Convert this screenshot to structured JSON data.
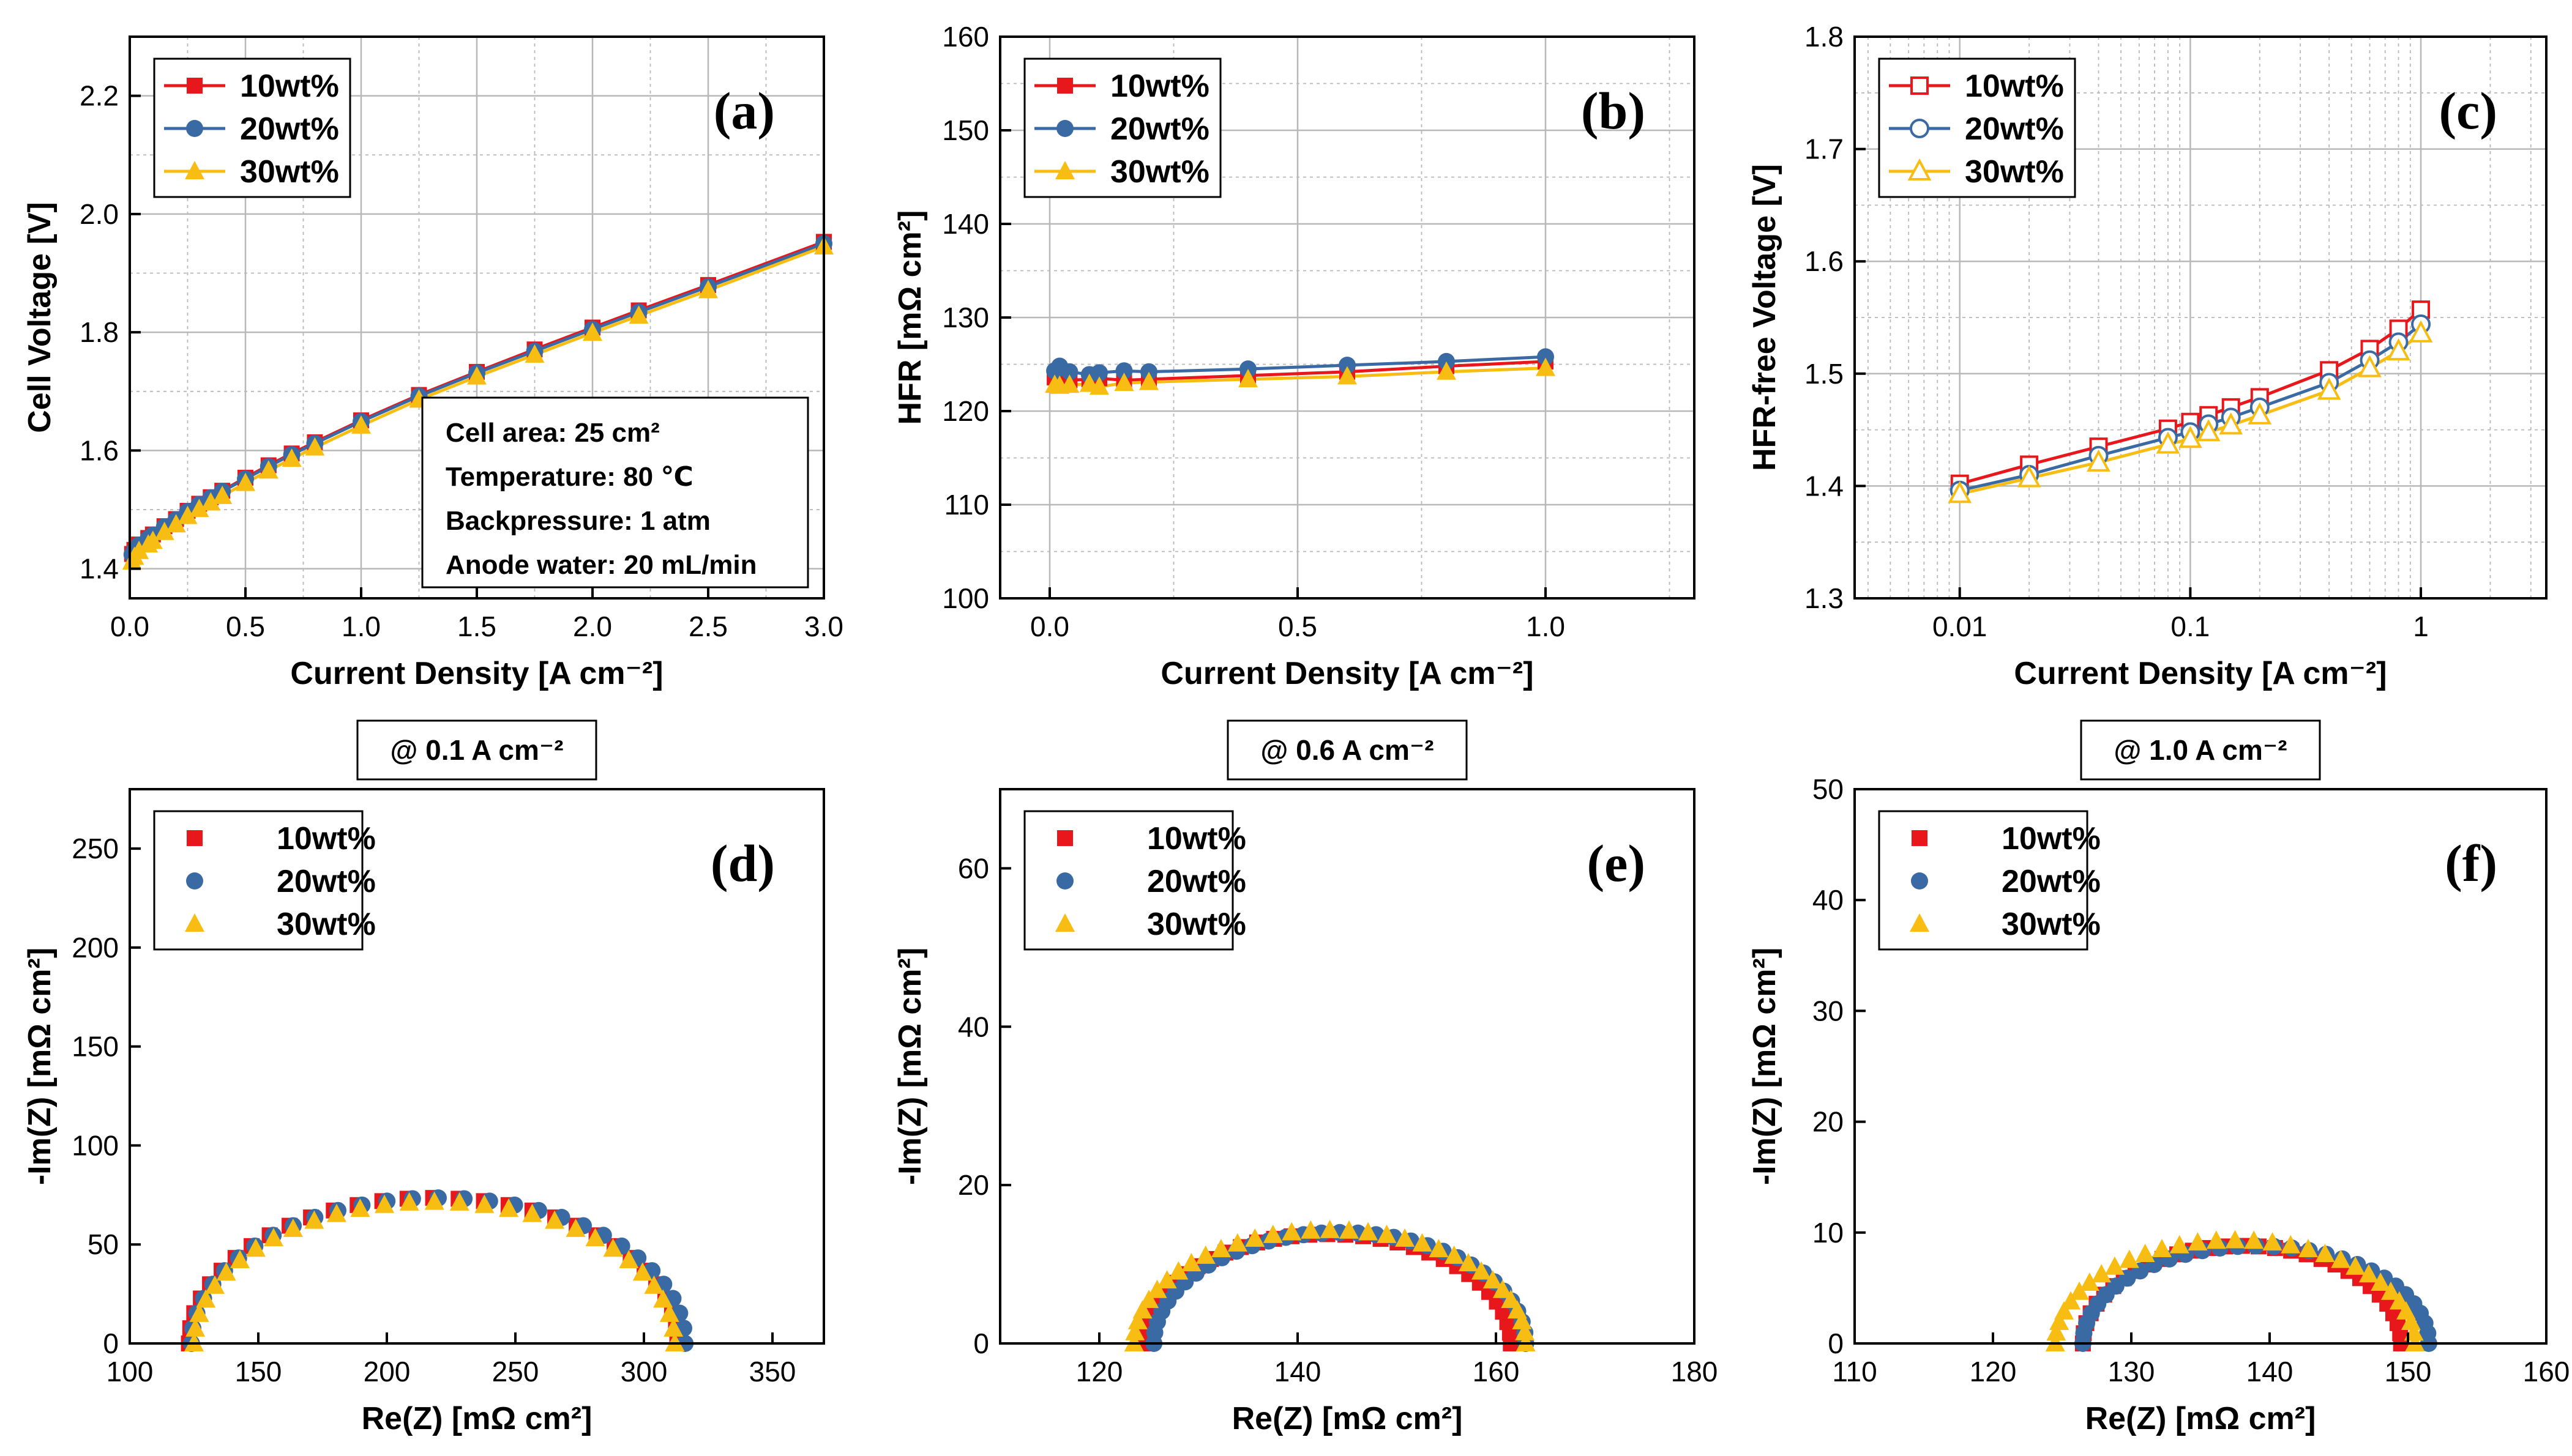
{
  "colors": {
    "red": "#e8171c",
    "blue": "#3a6aa3",
    "yellow": "#f7bd13",
    "grid": "#b8b8b8",
    "axis": "#000000"
  },
  "legend_labels": [
    "10wt%",
    "20wt%",
    "30wt%"
  ],
  "chart_data": [
    {
      "id": "a",
      "type": "line",
      "panel_label": "(a)",
      "xlabel": "Current Density [A cm⁻²]",
      "ylabel": "Cell Voltage [V]",
      "xlim": [
        0,
        3.0
      ],
      "ylim": [
        1.35,
        2.3
      ],
      "xticks": [
        0,
        0.5,
        1.0,
        1.5,
        2.0,
        2.5,
        3.0
      ],
      "xtick_labels": [
        "0.0",
        "0.5",
        "1.0",
        "1.5",
        "2.0",
        "2.5",
        "3.0"
      ],
      "yticks": [
        1.4,
        1.6,
        1.8,
        2.0,
        2.2
      ],
      "ytick_labels": [
        "1.4",
        "1.6",
        "1.8",
        "2.0",
        "2.2"
      ],
      "x": [
        0.01,
        0.02,
        0.04,
        0.08,
        0.1,
        0.15,
        0.2,
        0.25,
        0.3,
        0.35,
        0.4,
        0.5,
        0.6,
        0.7,
        0.8,
        1.0,
        1.25,
        1.5,
        1.75,
        2.0,
        2.2,
        2.5,
        3.0
      ],
      "series": [
        {
          "name": "10wt%",
          "values": [
            1.425,
            1.432,
            1.441,
            1.452,
            1.458,
            1.472,
            1.484,
            1.498,
            1.51,
            1.521,
            1.532,
            1.554,
            1.575,
            1.595,
            1.614,
            1.651,
            1.694,
            1.733,
            1.771,
            1.808,
            1.837,
            1.88,
            1.953
          ]
        },
        {
          "name": "20wt%",
          "values": [
            1.424,
            1.431,
            1.44,
            1.451,
            1.457,
            1.471,
            1.483,
            1.497,
            1.509,
            1.52,
            1.531,
            1.552,
            1.573,
            1.593,
            1.612,
            1.649,
            1.692,
            1.731,
            1.768,
            1.805,
            1.834,
            1.877,
            1.95
          ]
        },
        {
          "name": "30wt%",
          "values": [
            1.412,
            1.42,
            1.43,
            1.441,
            1.447,
            1.462,
            1.475,
            1.489,
            1.501,
            1.512,
            1.523,
            1.545,
            1.566,
            1.586,
            1.605,
            1.642,
            1.686,
            1.725,
            1.762,
            1.799,
            1.828,
            1.871,
            1.945
          ]
        }
      ],
      "annotation": [
        "Cell area: 25 cm²",
        "Temperature: 80 ℃",
        "Backpressure: 1 atm",
        "Anode water: 20 mL/min"
      ]
    },
    {
      "id": "b",
      "type": "line",
      "panel_label": "(b)",
      "xlabel": "Current Density [A cm⁻²]",
      "ylabel": "HFR [mΩ cm²]",
      "xlim": [
        -0.1,
        1.3
      ],
      "ylim": [
        100,
        160
      ],
      "xticks": [
        0,
        0.5,
        1.0
      ],
      "xtick_labels": [
        "0.0",
        "0.5",
        "1.0"
      ],
      "yticks": [
        100,
        110,
        120,
        130,
        140,
        150,
        160
      ],
      "ytick_labels": [
        "100",
        "110",
        "120",
        "130",
        "140",
        "150",
        "160"
      ],
      "x": [
        0.01,
        0.02,
        0.04,
        0.08,
        0.1,
        0.15,
        0.2,
        0.4,
        0.6,
        0.8,
        1.0
      ],
      "series": [
        {
          "name": "10wt%",
          "values": [
            123.6,
            123.4,
            123.3,
            123.4,
            123.5,
            123.3,
            123.4,
            123.8,
            124.2,
            124.8,
            125.3
          ]
        },
        {
          "name": "20wt%",
          "values": [
            124.3,
            124.8,
            124.2,
            123.9,
            124.1,
            124.3,
            124.2,
            124.5,
            124.9,
            125.3,
            125.8
          ]
        },
        {
          "name": "30wt%",
          "values": [
            122.8,
            122.7,
            122.8,
            122.9,
            122.6,
            123.0,
            123.1,
            123.4,
            123.7,
            124.2,
            124.6
          ]
        }
      ]
    },
    {
      "id": "c",
      "type": "line",
      "panel_label": "(c)",
      "xscale": "log",
      "open_markers": true,
      "xlabel": "Current Density [A cm⁻²]",
      "ylabel": "HFR-free Voltage [V]",
      "xlim": [
        0.0035,
        3.5
      ],
      "ylim": [
        1.3,
        1.8
      ],
      "xticks": [
        0.01,
        0.1,
        1
      ],
      "xtick_labels": [
        "0.01",
        "0.1",
        "1"
      ],
      "yticks": [
        1.3,
        1.4,
        1.5,
        1.6,
        1.7,
        1.8
      ],
      "ytick_labels": [
        "1.3",
        "1.4",
        "1.5",
        "1.6",
        "1.7",
        "1.8"
      ],
      "x": [
        0.01,
        0.02,
        0.04,
        0.08,
        0.1,
        0.12,
        0.15,
        0.2,
        0.4,
        0.6,
        0.8,
        1.0
      ],
      "series": [
        {
          "name": "10wt%",
          "values": [
            1.402,
            1.419,
            1.435,
            1.451,
            1.457,
            1.463,
            1.47,
            1.479,
            1.503,
            1.522,
            1.54,
            1.557
          ]
        },
        {
          "name": "20wt%",
          "values": [
            1.396,
            1.41,
            1.427,
            1.443,
            1.448,
            1.455,
            1.461,
            1.47,
            1.492,
            1.512,
            1.528,
            1.544
          ]
        },
        {
          "name": "30wt%",
          "values": [
            1.393,
            1.407,
            1.421,
            1.437,
            1.442,
            1.448,
            1.454,
            1.463,
            1.485,
            1.505,
            1.52,
            1.536
          ]
        }
      ]
    },
    {
      "id": "d",
      "type": "scatter",
      "panel_label": "(d)",
      "subtitle": "@ 0.1 A cm⁻²",
      "xlabel": "Re(Z) [mΩ cm²]",
      "ylabel": "-Im(Z) [mΩ cm²]",
      "xlim": [
        100,
        370
      ],
      "ylim": [
        0,
        280
      ],
      "xticks": [
        100,
        150,
        200,
        250,
        300,
        350
      ],
      "xtick_labels": [
        "100",
        "150",
        "200",
        "250",
        "300",
        "350"
      ],
      "yticks": [
        0,
        50,
        100,
        150,
        200,
        250
      ],
      "ytick_labels": [
        "0",
        "50",
        "100",
        "150",
        "200",
        "250"
      ],
      "arc": [
        {
          "name": "10wt%",
          "start": 123,
          "end": 313,
          "peak": 73.5,
          "n": 30
        },
        {
          "name": "20wt%",
          "start": 124,
          "end": 316,
          "peak": 73.5,
          "n": 30
        },
        {
          "name": "30wt%",
          "start": 125,
          "end": 312,
          "peak": 71.5,
          "n": 30
        }
      ]
    },
    {
      "id": "e",
      "type": "scatter",
      "panel_label": "(e)",
      "subtitle": "@ 0.6 A cm⁻²",
      "xlabel": "Re(Z) [mΩ cm²]",
      "ylabel": "-Im(Z) [mΩ cm²]",
      "xlim": [
        110,
        180
      ],
      "ylim": [
        0,
        70
      ],
      "xticks": [
        120,
        140,
        160,
        180
      ],
      "xtick_labels": [
        "120",
        "140",
        "160",
        "180"
      ],
      "yticks": [
        0,
        20,
        40,
        60
      ],
      "ytick_labels": [
        "0",
        "20",
        "40",
        "60"
      ],
      "arc": [
        {
          "name": "10wt%",
          "start": 124.5,
          "end": 161.5,
          "peak": 13.8,
          "n": 32
        },
        {
          "name": "20wt%",
          "start": 125.5,
          "end": 163,
          "peak": 14.0,
          "n": 32
        },
        {
          "name": "30wt%",
          "start": 123.5,
          "end": 163,
          "peak": 14.3,
          "n": 32
        }
      ]
    },
    {
      "id": "f",
      "type": "scatter",
      "panel_label": "(f)",
      "subtitle": "@ 1.0 A cm⁻²",
      "xlabel": "Re(Z) [mΩ cm²]",
      "ylabel": "-Im(Z) [mΩ cm²]",
      "xlim": [
        110,
        160
      ],
      "ylim": [
        0,
        50
      ],
      "xticks": [
        110,
        120,
        130,
        140,
        150,
        160
      ],
      "xtick_labels": [
        "110",
        "120",
        "130",
        "140",
        "150",
        "160"
      ],
      "yticks": [
        0,
        10,
        20,
        30,
        40,
        50
      ],
      "ytick_labels": [
        "0",
        "10",
        "20",
        "30",
        "40",
        "50"
      ],
      "arc": [
        {
          "name": "10wt%",
          "start": 126.5,
          "end": 149.5,
          "peak": 8.8,
          "n": 30
        },
        {
          "name": "20wt%",
          "start": 126.5,
          "end": 151.5,
          "peak": 8.8,
          "n": 30
        },
        {
          "name": "30wt%",
          "start": 124.5,
          "end": 150.5,
          "peak": 9.3,
          "n": 30
        }
      ]
    }
  ]
}
